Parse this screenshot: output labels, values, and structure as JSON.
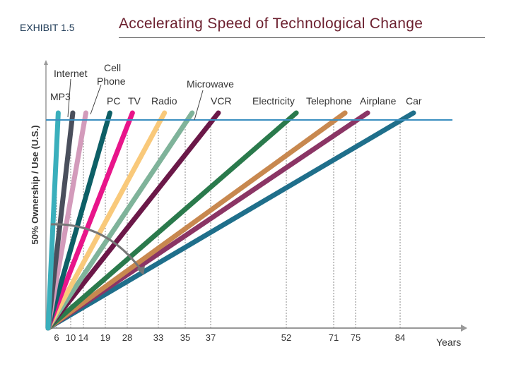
{
  "header": {
    "exhibit": "EXHIBIT 1.5",
    "title": "Accelerating Speed of Technological Change"
  },
  "chart_data": {
    "type": "line",
    "title": "Accelerating Speed of Technological Change",
    "xlabel": "Years",
    "ylabel": "50% Ownership / Use (U.S.)",
    "x_ticks": [
      6,
      10,
      14,
      19,
      28,
      33,
      35,
      37,
      52,
      71,
      75,
      84
    ],
    "threshold_label": "50% Ownership / Use (U.S.)",
    "series": [
      {
        "name": "MP3",
        "years": 6,
        "color": "#3aafbc"
      },
      {
        "name": "Internet",
        "years": 10,
        "color": "#4a4f5c"
      },
      {
        "name": "Cell Phone",
        "years": 14,
        "color": "#d39bbb"
      },
      {
        "name": "PC",
        "years": 19,
        "color": "#0d5f66"
      },
      {
        "name": "TV",
        "years": 28,
        "color": "#e8158a"
      },
      {
        "name": "Radio",
        "years": 33,
        "color": "#f9c97a"
      },
      {
        "name": "Microwave",
        "years": 35,
        "color": "#7fb39a"
      },
      {
        "name": "VCR",
        "years": 37,
        "color": "#6b1848"
      },
      {
        "name": "Electricity",
        "years": 52,
        "color": "#2a7a4c"
      },
      {
        "name": "Telephone",
        "years": 71,
        "color": "#c8884f"
      },
      {
        "name": "Airplane",
        "years": 75,
        "color": "#8b3565"
      },
      {
        "name": "Car",
        "years": 84,
        "color": "#1f6f8b"
      }
    ],
    "threshold_color": "#3b8fc0",
    "grid": false
  }
}
